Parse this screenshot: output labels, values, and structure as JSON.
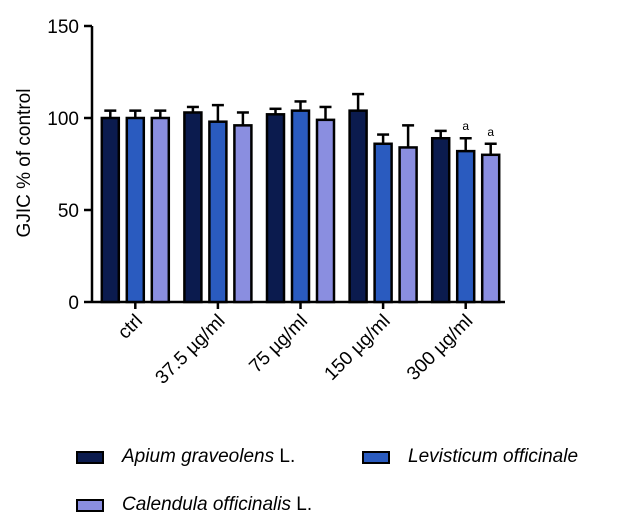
{
  "chart_data": {
    "type": "bar",
    "ylabel": "GJIC % of control",
    "xlabel": "",
    "ylim": [
      0,
      150
    ],
    "yticks": [
      0,
      50,
      100,
      150
    ],
    "categories": [
      "ctrl",
      "37.5 µg/ml",
      "75 µg/ml",
      "150 µg/ml",
      "300 µg/ml"
    ],
    "series": [
      {
        "name": "Apium graveolens L.",
        "name_italic": "Apium graveolens",
        "name_suffix": " L.",
        "color": "#0b1b4e",
        "values": [
          100,
          103,
          102,
          104,
          89
        ],
        "errors": [
          4,
          3,
          3,
          9,
          4
        ],
        "annotations": [
          "",
          "",
          "",
          "",
          ""
        ]
      },
      {
        "name": "Levisticum officinale",
        "name_italic": "Levisticum officinale",
        "name_suffix": "",
        "color": "#2a5bbf",
        "values": [
          100,
          98,
          104,
          86,
          82
        ],
        "errors": [
          4,
          9,
          5,
          5,
          7
        ],
        "annotations": [
          "",
          "",
          "",
          "",
          "a"
        ]
      },
      {
        "name": "Calendula officinalis L.",
        "name_italic": "Calendula officinalis",
        "name_suffix": " L.",
        "color": "#8a8ee0",
        "values": [
          100,
          96,
          99,
          84,
          80
        ],
        "errors": [
          4,
          7,
          7,
          12,
          6
        ],
        "annotations": [
          "",
          "",
          "",
          "",
          "a"
        ]
      }
    ],
    "grid": false,
    "legend_position": "bottom"
  }
}
